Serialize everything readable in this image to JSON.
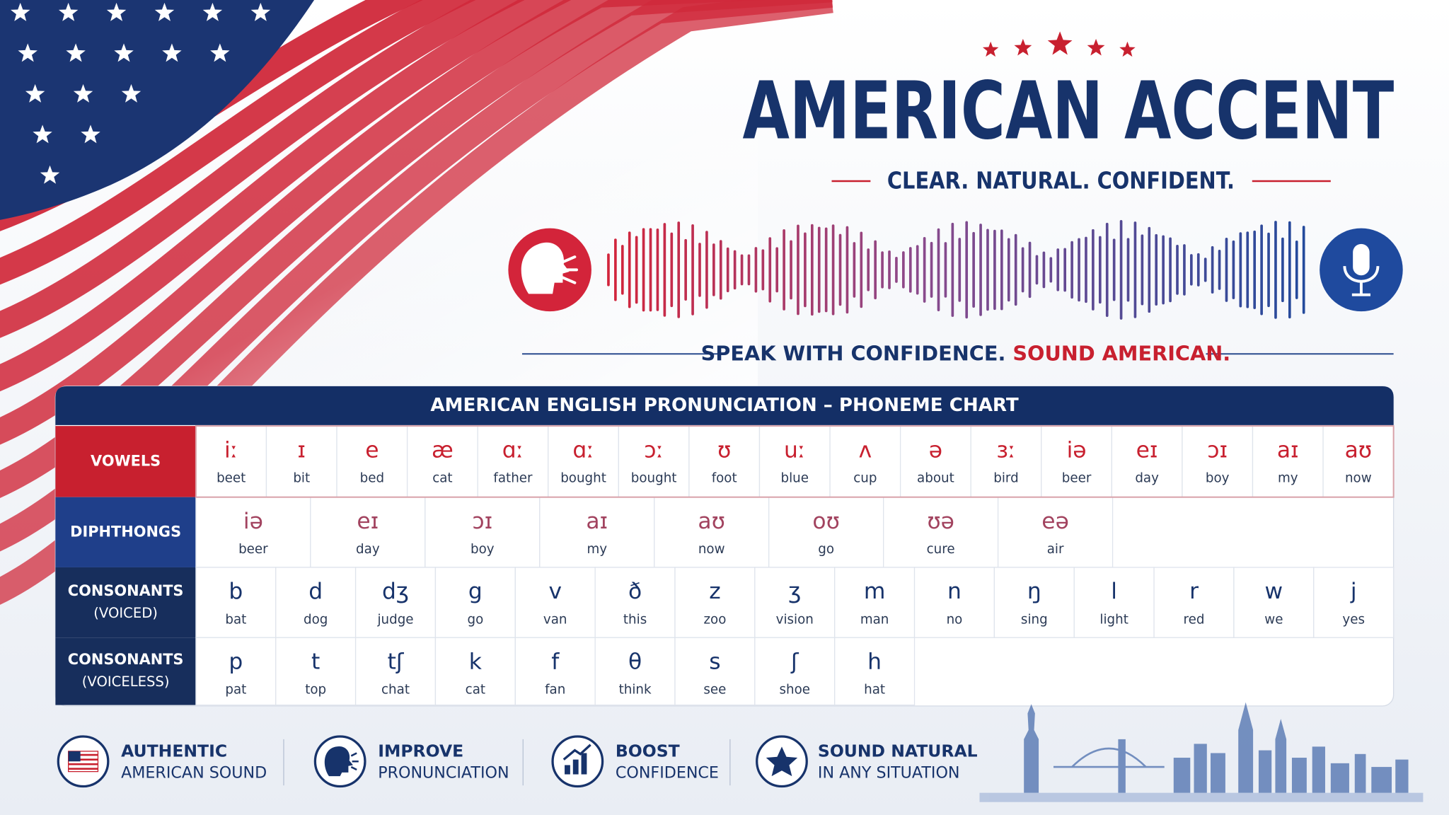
{
  "header": {
    "title": "AMERICAN ACCENT",
    "tagline": "CLEAR. NATURAL. CONFIDENT.",
    "slogan": [
      "SPEAK WITH CONFIDENCE.",
      "SOUND AMERICAN."
    ]
  },
  "table": {
    "title": "AMERICAN ENGLISH PRONUNCIATION – PHONEME CHART",
    "rows": [
      {
        "label": [
          "VOWELS"
        ],
        "cells": [
          [
            "iː",
            "beet"
          ],
          [
            "ɪ",
            "bit"
          ],
          [
            "e",
            "bed"
          ],
          [
            "æ",
            "cat"
          ],
          [
            "ɑː",
            "father"
          ],
          [
            "ɑː",
            "bought"
          ],
          [
            "ɔː",
            "bought"
          ],
          [
            "ʊ",
            "foot"
          ],
          [
            "uː",
            "blue"
          ],
          [
            "ʌ",
            "cup"
          ],
          [
            "ə",
            "about"
          ],
          [
            "ɜː",
            "bird"
          ],
          [
            "iə",
            "beer"
          ],
          [
            "eɪ",
            "day"
          ],
          [
            "ɔɪ",
            "boy"
          ],
          [
            "aɪ",
            "my"
          ],
          [
            "aʊ",
            "now"
          ]
        ]
      },
      {
        "label": [
          "DIPHTHONGS"
        ],
        "cells": [
          [
            "iə",
            "beer"
          ],
          [
            "eɪ",
            "day"
          ],
          [
            "ɔɪ",
            "boy"
          ],
          [
            "aɪ",
            "my"
          ],
          [
            "aʊ",
            "now"
          ],
          [
            "oʊ",
            "go"
          ],
          [
            "ʊə",
            "cure"
          ],
          [
            "eə",
            "air"
          ]
        ]
      },
      {
        "label": [
          "CONSONANTS",
          "(VOICED)"
        ],
        "cells": [
          [
            "b",
            "bat"
          ],
          [
            "d",
            "dog"
          ],
          [
            "dʒ",
            "judge"
          ],
          [
            "g",
            "go"
          ],
          [
            "v",
            "van"
          ],
          [
            "ð",
            "this"
          ],
          [
            "z",
            "zoo"
          ],
          [
            "ʒ",
            "vision"
          ],
          [
            "m",
            "man"
          ],
          [
            "n",
            "no"
          ],
          [
            "ŋ",
            "sing"
          ],
          [
            "l",
            "light"
          ],
          [
            "r",
            "red"
          ],
          [
            "w",
            "we"
          ],
          [
            "j",
            "yes"
          ]
        ]
      },
      {
        "label": [
          "CONSONANTS",
          "(VOICELESS)"
        ],
        "cells": [
          [
            "p",
            "pat"
          ],
          [
            "t",
            "top"
          ],
          [
            "tʃ",
            "chat"
          ],
          [
            "k",
            "cat"
          ],
          [
            "f",
            "fan"
          ],
          [
            "θ",
            "think"
          ],
          [
            "s",
            "see"
          ],
          [
            "ʃ",
            "shoe"
          ],
          [
            "h",
            "hat"
          ]
        ]
      }
    ]
  },
  "features": [
    [
      "AUTHENTIC",
      "AMERICAN SOUND"
    ],
    [
      "IMPROVE",
      "PRONUNCIATION"
    ],
    [
      "BOOST",
      "CONFIDENCE"
    ],
    [
      "SOUND NATURAL",
      "IN ANY SITUATION"
    ]
  ]
}
